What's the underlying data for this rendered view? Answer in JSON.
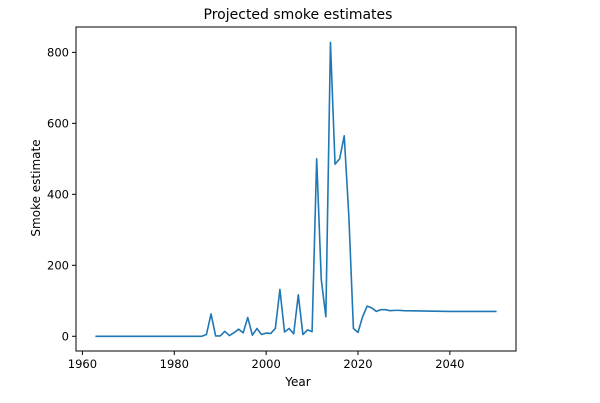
{
  "chart_data": {
    "type": "line",
    "title": "Projected smoke estimates",
    "xlabel": "Year",
    "ylabel": "Smoke estimate",
    "xlim": [
      1958.6,
      2054.4
    ],
    "ylim": [
      -41.5,
      871.5
    ],
    "xticks": [
      1960,
      1980,
      2000,
      2020,
      2040
    ],
    "yticks": [
      0,
      200,
      400,
      600,
      800
    ],
    "grid": false,
    "legend": "none",
    "line_color": "#1f77b4",
    "series": [
      {
        "x": [
          1963,
          1964,
          1965,
          1966,
          1967,
          1968,
          1969,
          1970,
          1971,
          1972,
          1973,
          1974,
          1975,
          1976,
          1977,
          1978,
          1979,
          1980,
          1981,
          1982,
          1983,
          1984,
          1985,
          1986,
          1987,
          1988,
          1989,
          1990,
          1991,
          1992,
          1993,
          1994,
          1995,
          1996,
          1997,
          1998,
          1999,
          2000,
          2001,
          2002,
          2003,
          2004,
          2005,
          2006,
          2007,
          2008,
          2009,
          2010,
          2011,
          2012,
          2013,
          2014,
          2015,
          2016,
          2017,
          2018,
          2019,
          2020,
          2021,
          2022,
          2023,
          2024,
          2025,
          2026,
          2027,
          2028,
          2029,
          2030,
          2035,
          2040,
          2045,
          2050
        ],
        "y": [
          0,
          0,
          0,
          0,
          0,
          0,
          0,
          0,
          0,
          0,
          0,
          0,
          0,
          0,
          0,
          0,
          0,
          0,
          0,
          0,
          0,
          0,
          0,
          0,
          5,
          63,
          1,
          1,
          14,
          2,
          10,
          20,
          10,
          53,
          3,
          22,
          5,
          9,
          8,
          22,
          132,
          12,
          22,
          7,
          117,
          5,
          18,
          13,
          500,
          160,
          55,
          828,
          485,
          500,
          565,
          340,
          22,
          11,
          55,
          85,
          80,
          70,
          75,
          75,
          72,
          73,
          73,
          72,
          71,
          70,
          70,
          70
        ]
      }
    ]
  }
}
